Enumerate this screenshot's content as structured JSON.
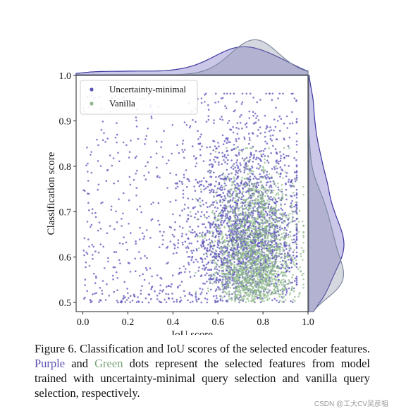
{
  "chart_data": {
    "type": "scatter",
    "xlabel": "IoU score",
    "ylabel": "Classification score",
    "xlim": [
      -0.03,
      1.0
    ],
    "ylim": [
      0.48,
      1.0
    ],
    "xticks": [
      0.0,
      0.2,
      0.4,
      0.6,
      0.8,
      1.0
    ],
    "yticks": [
      0.5,
      0.6,
      0.7,
      0.8,
      0.9,
      1.0
    ],
    "xtick_labels": [
      "0.0",
      "0.2",
      "0.4",
      "0.6",
      "0.8",
      "1.0"
    ],
    "ytick_labels": [
      "0.5",
      "0.6",
      "0.7",
      "0.8",
      "0.9",
      "1.0"
    ],
    "legend_position": "top-left",
    "marginals": "kde on top (IoU) and right (classification)",
    "series": [
      {
        "name": "Uncertainty-minimal",
        "color": "#5b52b8",
        "distribution": {
          "x_range": [
            0.0,
            0.95
          ],
          "x_mode": 0.7,
          "y_range": [
            0.5,
            0.96
          ],
          "y_mode": 0.52,
          "dense_region": {
            "x": [
              0.55,
              0.9
            ],
            "y": [
              0.5,
              0.95
            ]
          }
        }
      },
      {
        "name": "Vanilla",
        "color": "#8fb98a",
        "distribution": {
          "x_range": [
            0.4,
            0.98
          ],
          "x_mode": 0.76,
          "y_range": [
            0.5,
            0.84
          ],
          "y_mode": 0.52,
          "dense_region": {
            "x": [
              0.6,
              0.95
            ],
            "y": [
              0.5,
              0.72
            ]
          }
        }
      }
    ],
    "legend_entries": [
      "Uncertainty-minimal",
      "Vanilla"
    ]
  },
  "caption": {
    "part1": "Figure 6.  Classification and IoU scores of the selected encoder features.",
    "purple_word": "Purple",
    "and_word": "and",
    "green_word": "Green",
    "part2": "dots represent the selected features from model trained with uncertainty-minimal query selection and vanilla query selection, respectively."
  },
  "watermark": "CSDN @工大CV吴彦祖"
}
